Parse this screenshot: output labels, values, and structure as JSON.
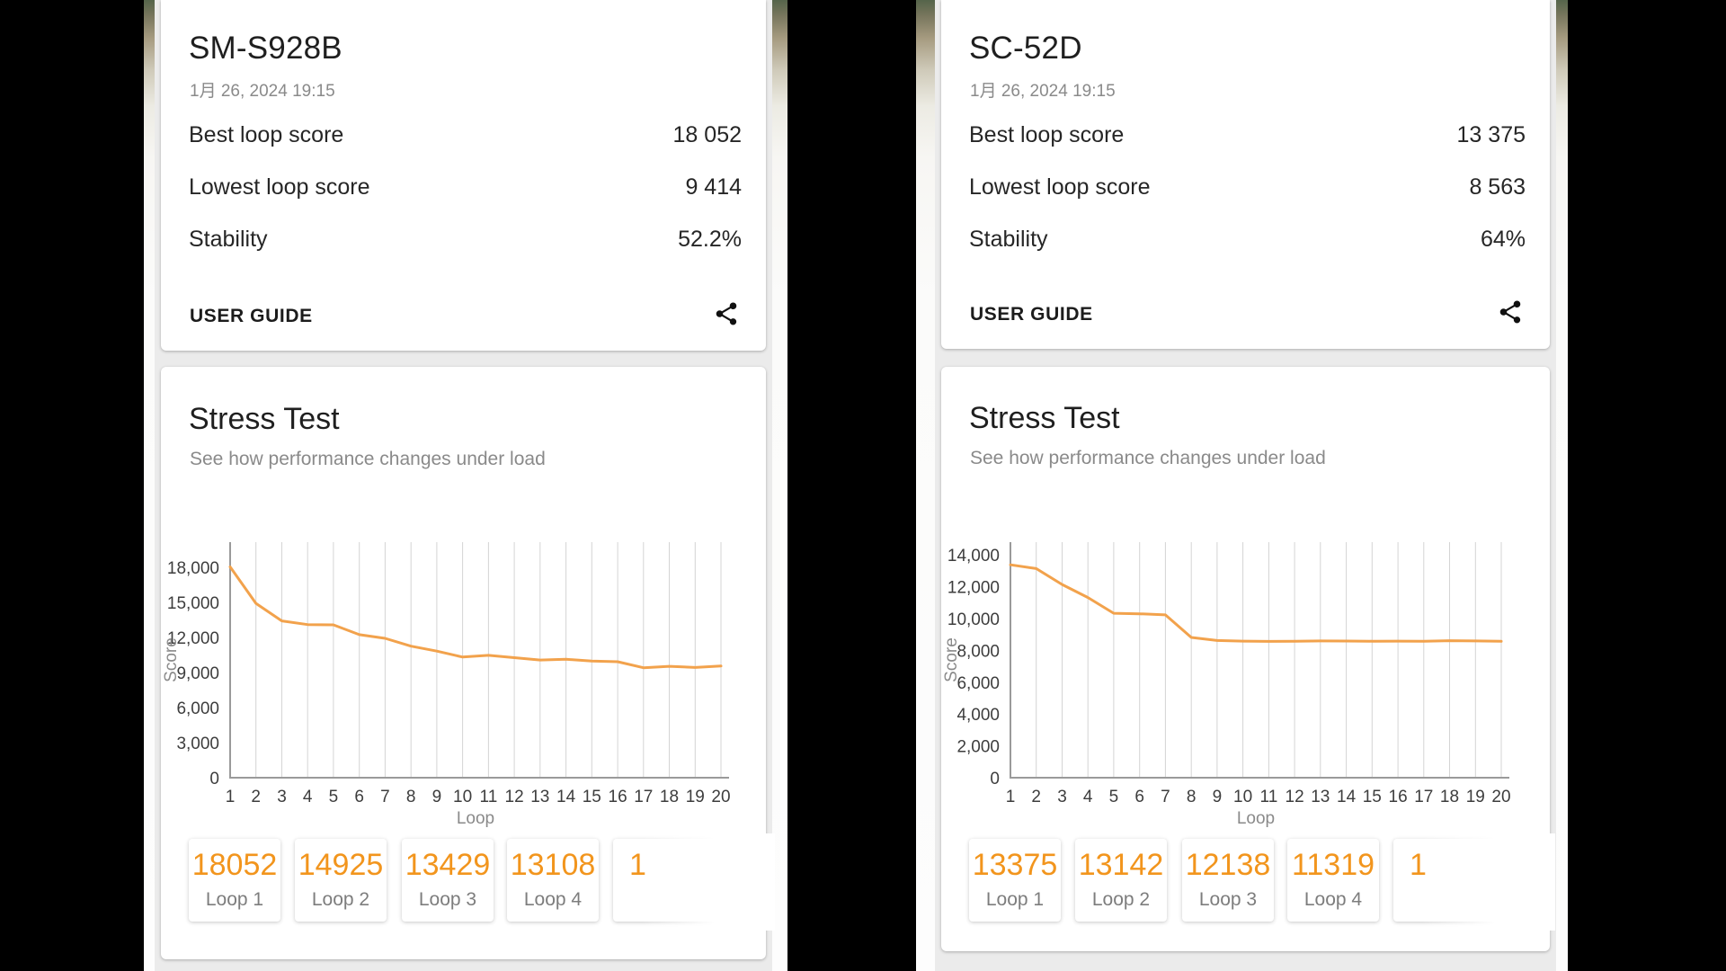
{
  "left_panel": {
    "device": "SM-S928B",
    "date": "1月 26, 2024 19:15",
    "rows": [
      {
        "label": "Best loop score",
        "value": "18 052"
      },
      {
        "label": "Lowest loop score",
        "value": "9 414"
      },
      {
        "label": "Stability",
        "value": "52.2%"
      }
    ],
    "user_guide": "USER GUIDE",
    "stress_title": "Stress Test",
    "stress_subtitle": "See how performance changes under load",
    "chips": [
      {
        "value": "18052",
        "label": "Loop 1"
      },
      {
        "value": "14925",
        "label": "Loop 2"
      },
      {
        "value": "13429",
        "label": "Loop 3"
      },
      {
        "value": "13108",
        "label": "Loop 4"
      },
      {
        "value": "1",
        "label": ""
      }
    ]
  },
  "right_panel": {
    "device": "SC-52D",
    "date": "1月 26, 2024 19:15",
    "rows": [
      {
        "label": "Best loop score",
        "value": "13 375"
      },
      {
        "label": "Lowest loop score",
        "value": "8 563"
      },
      {
        "label": "Stability",
        "value": "64%"
      }
    ],
    "user_guide": "USER GUIDE",
    "stress_title": "Stress Test",
    "stress_subtitle": "See how performance changes under load",
    "chips": [
      {
        "value": "13375",
        "label": "Loop 1"
      },
      {
        "value": "13142",
        "label": "Loop 2"
      },
      {
        "value": "12138",
        "label": "Loop 3"
      },
      {
        "value": "11319",
        "label": "Loop 4"
      },
      {
        "value": "1",
        "label": ""
      }
    ]
  },
  "chart_data": [
    {
      "type": "line",
      "device": "SM-S928B",
      "title": "Stress Test",
      "xlabel": "Loop",
      "ylabel": "Score",
      "x": [
        1,
        2,
        3,
        4,
        5,
        6,
        7,
        8,
        9,
        10,
        11,
        12,
        13,
        14,
        15,
        16,
        17,
        18,
        19,
        20
      ],
      "values": [
        18052,
        14925,
        13429,
        13108,
        13090,
        12250,
        11930,
        11260,
        10840,
        10330,
        10480,
        10280,
        10080,
        10140,
        9990,
        9930,
        9414,
        9540,
        9440,
        9560
      ],
      "ylim": [
        0,
        20170
      ],
      "yticks": [
        0,
        3000,
        6000,
        9000,
        12000,
        15000,
        18000
      ],
      "grid": "vertical",
      "legend": "none",
      "line_color": "#F2A24C"
    },
    {
      "type": "line",
      "device": "SC-52D",
      "title": "Stress Test",
      "xlabel": "Loop",
      "ylabel": "Score",
      "x": [
        1,
        2,
        3,
        4,
        5,
        6,
        7,
        8,
        9,
        10,
        11,
        12,
        13,
        14,
        15,
        16,
        17,
        18,
        19,
        20
      ],
      "values": [
        13375,
        13142,
        12138,
        11319,
        10330,
        10300,
        10230,
        8810,
        8620,
        8580,
        8563,
        8570,
        8590,
        8585,
        8575,
        8580,
        8575,
        8610,
        8590,
        8570
      ],
      "ylim": [
        0,
        14800
      ],
      "yticks": [
        0,
        2000,
        4000,
        6000,
        8000,
        10000,
        12000,
        14000
      ],
      "grid": "vertical",
      "legend": "none",
      "line_color": "#F2A24C"
    }
  ],
  "colors": {
    "accent_orange": "#F2951D",
    "line_orange": "#F2A24C",
    "screen_bg": "#EBEBEB",
    "card_bg": "#FFFFFF",
    "text_primary": "#1F1F1F",
    "text_secondary": "#8A8A8A",
    "frame_bg": "#000000"
  }
}
